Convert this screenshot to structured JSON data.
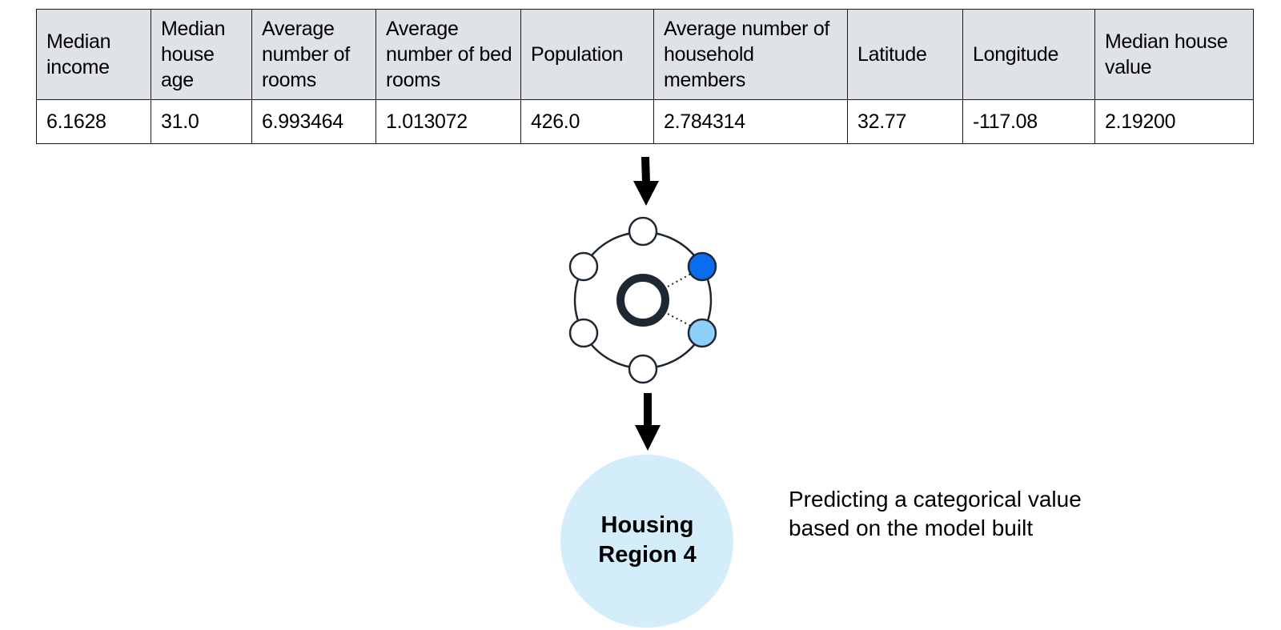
{
  "table": {
    "headers": [
      "Median income",
      "Median house age",
      "Average number of rooms",
      "Average number of bed rooms",
      "Population",
      "Average number of household members",
      "Latitude",
      "Longitude",
      "Median house value"
    ],
    "rows": [
      [
        "6.1628",
        "31.0",
        "6.993464",
        "1.013072",
        "426.0",
        "2.784314",
        "32.77",
        "-117.08",
        "2.19200"
      ]
    ]
  },
  "model": {
    "icon": "network-model-icon",
    "active_node_color": "#0a6cf0",
    "secondary_node_color": "#8ccff8",
    "ring_color": "#1e2833"
  },
  "output": {
    "label": "Housing Region 4",
    "fill_color": "#d4edfb"
  },
  "caption": "Predicting a categorical value\nbased on the model built"
}
